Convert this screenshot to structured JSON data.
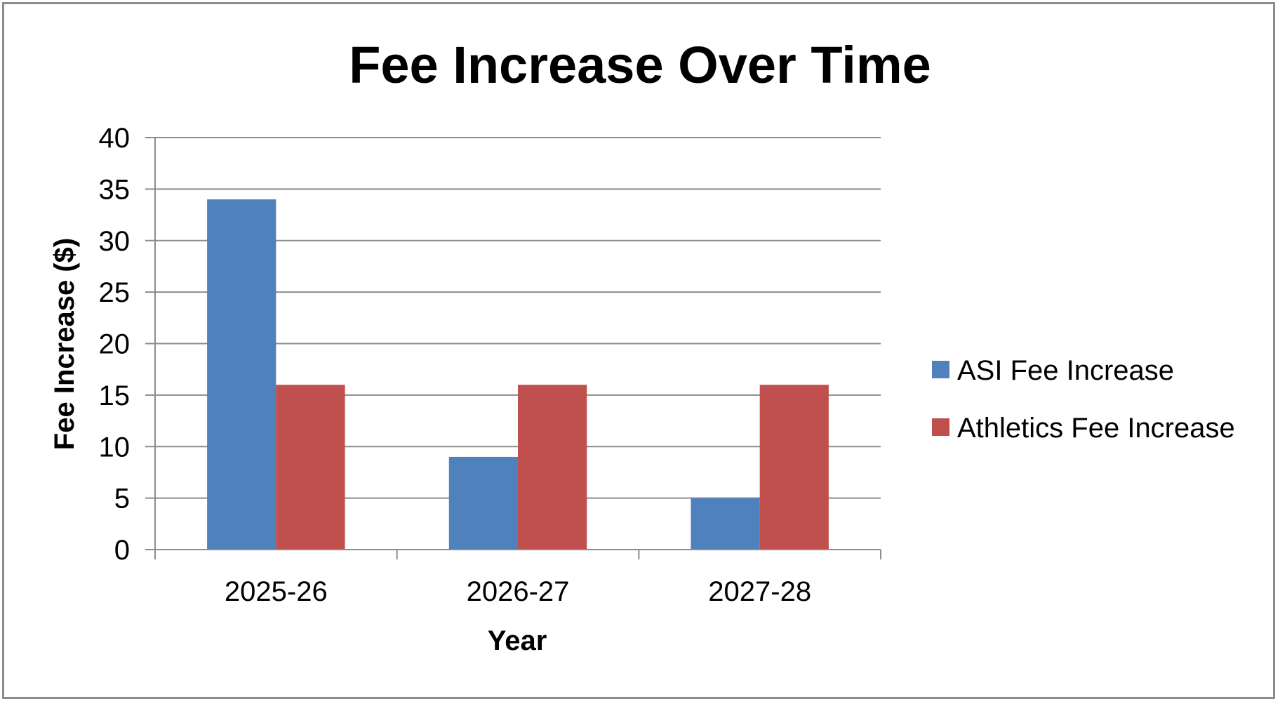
{
  "chart_data": {
    "type": "bar",
    "title": "Fee Increase Over Time",
    "xlabel": "Year",
    "ylabel": "Fee Increase ($)",
    "categories": [
      "2025-26",
      "2026-27",
      "2027-28"
    ],
    "series": [
      {
        "name": "ASI Fee Increase",
        "values": [
          34,
          9,
          5
        ],
        "color": "#4f81bd"
      },
      {
        "name": "Athletics Fee Increase",
        "values": [
          16,
          16,
          16
        ],
        "color": "#c0504d"
      }
    ],
    "ylim": [
      0,
      40
    ],
    "yticks": [
      0,
      5,
      10,
      15,
      20,
      25,
      30,
      35,
      40
    ],
    "grid": true,
    "legend_position": "right"
  }
}
